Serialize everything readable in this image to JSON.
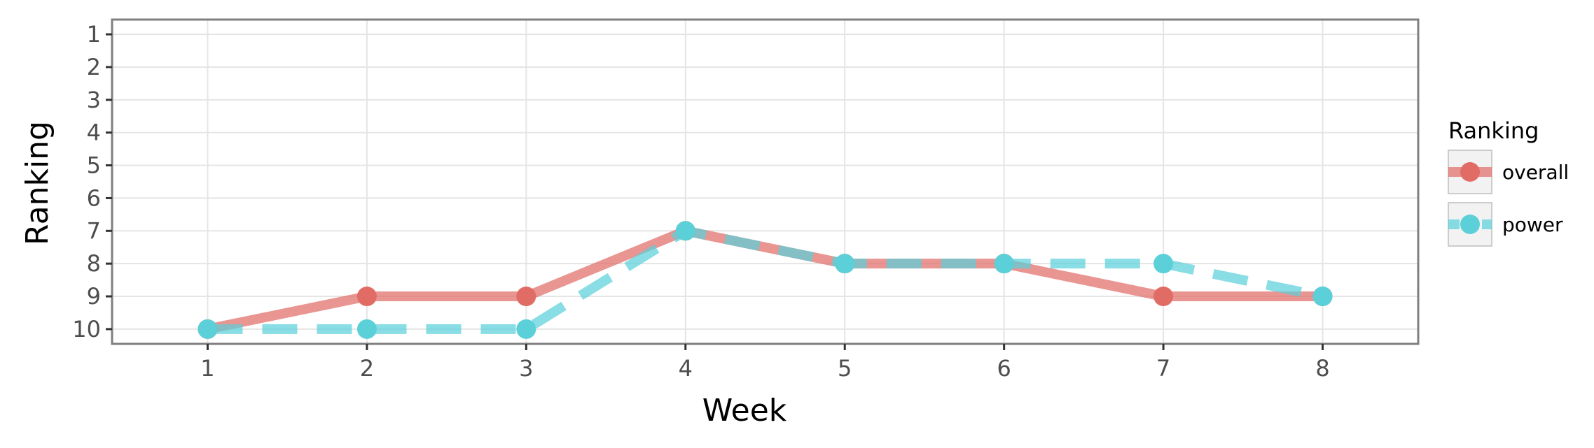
{
  "chart_data": {
    "type": "line",
    "title": "",
    "xlabel": "Week",
    "ylabel": "Ranking",
    "x": [
      1,
      2,
      3,
      4,
      5,
      6,
      7,
      8
    ],
    "x_tick_labels": [
      "1",
      "2",
      "3",
      "4",
      "5",
      "6",
      "7",
      "8"
    ],
    "y_tick_labels": [
      "1",
      "2",
      "3",
      "4",
      "5",
      "6",
      "7",
      "8",
      "9",
      "10"
    ],
    "xlim": [
      0.4,
      8.6
    ],
    "ylim": [
      10.45,
      0.55
    ],
    "y_reversed": true,
    "grid": true,
    "legend_title": "Ranking",
    "legend_placement": "right",
    "series": [
      {
        "name": "overall",
        "values": [
          10,
          9,
          9,
          7,
          8,
          8,
          9,
          9
        ],
        "color": "#e16c66",
        "line_style": "solid"
      },
      {
        "name": "power",
        "values": [
          10,
          10,
          10,
          7,
          8,
          8,
          8,
          9
        ],
        "color": "#5bd0d9",
        "line_style": "dashed"
      }
    ]
  }
}
